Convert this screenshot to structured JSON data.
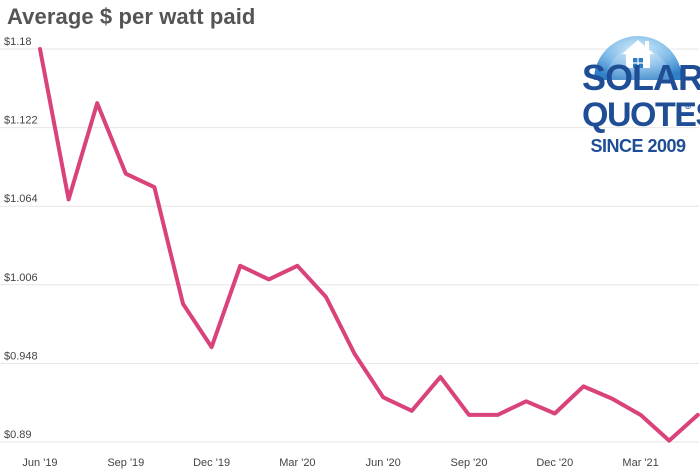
{
  "title": "Average $ per watt paid",
  "logo": {
    "line1": "SOLAR",
    "line2": "QUOTES",
    "registered": "®",
    "line3": "SINCE 2009",
    "icon": "house-icon",
    "colors": {
      "text": "#1f4e96",
      "circle_light": "#9fd0f0",
      "circle_dark": "#2f7fc8"
    }
  },
  "colors": {
    "line": "#d9427a",
    "grid": "#e6e6e6"
  },
  "chart_data": {
    "type": "line",
    "title": "Average $ per watt paid",
    "xlabel": "",
    "ylabel": "",
    "x": [
      "Jun '19",
      "Jul '19",
      "Aug '19",
      "Sep '19",
      "Oct '19",
      "Nov '19",
      "Dec '19",
      "Jan '20",
      "Feb '20",
      "Mar '20",
      "Apr '20",
      "May '20",
      "Jun '20",
      "Jul '20",
      "Aug '20",
      "Sep '20",
      "Oct '20",
      "Nov '20",
      "Dec '20",
      "Jan '21",
      "Feb '21",
      "Mar '21",
      "Apr '21",
      "May '21"
    ],
    "x_tick_labels": [
      "Jun '19",
      "Sep '19",
      "Dec '19",
      "Mar '20",
      "Jun '20",
      "Sep '20",
      "Dec '20",
      "Mar '21"
    ],
    "y_tick_labels": [
      "$1.18",
      "$1.122",
      "$1.064",
      "$1.006",
      "$0.948",
      "$0.89"
    ],
    "ylim": [
      0.89,
      1.18
    ],
    "grid": true,
    "series": [
      {
        "values": [
          1.18,
          1.069,
          1.14,
          1.088,
          1.078,
          0.992,
          0.96,
          1.02,
          1.01,
          1.02,
          0.997,
          0.955,
          0.923,
          0.913,
          0.938,
          0.91,
          0.91,
          0.92,
          0.911,
          0.931,
          0.922,
          0.91,
          0.891,
          0.91
        ]
      }
    ]
  }
}
